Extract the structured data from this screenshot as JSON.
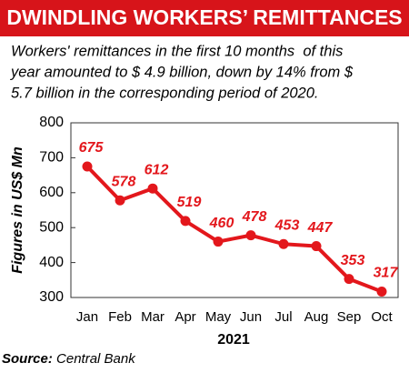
{
  "chart_data": {
    "type": "line",
    "title": "DWINDLING WORKERS’ REMITTANCES",
    "subtitle": [
      "Workers' remittances in the first 10 months  of this",
      "year amounted to $ 4.9 billion, down by 14% from $",
      "5.7 billion in the corresponding period of 2020."
    ],
    "categories": [
      "Jan",
      "Feb",
      "Mar",
      "Apr",
      "May",
      "Jun",
      "Jul",
      "Aug",
      "Sep",
      "Oct"
    ],
    "values": [
      675,
      578,
      612,
      519,
      460,
      478,
      453,
      447,
      353,
      317
    ],
    "color": "#e3171c",
    "ylabel": "Figures in US$ Mn",
    "xlabel": "2021",
    "ylim": [
      300,
      800
    ],
    "yticks": [
      300,
      400,
      500,
      600,
      700,
      800
    ],
    "source": {
      "label": "Source:",
      "text": "Central Bank"
    }
  }
}
